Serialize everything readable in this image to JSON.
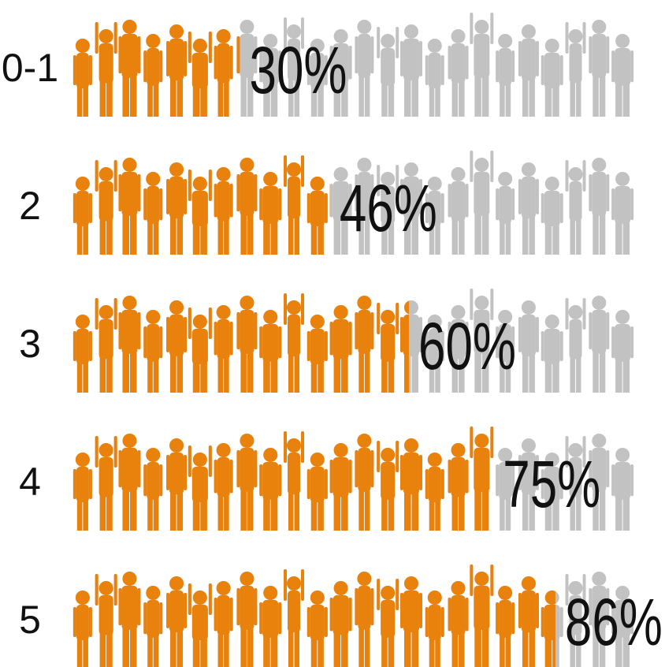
{
  "chart_data": {
    "type": "pictograph",
    "categories": [
      "0-1",
      "2",
      "3",
      "4",
      "5"
    ],
    "values": [
      30,
      46,
      60,
      75,
      86
    ],
    "value_labels": [
      "30%",
      "46%",
      "60%",
      "75%",
      "86%"
    ],
    "xlim": [
      0,
      100
    ],
    "color": "#e8820c",
    "background_color": "#c2c2c2"
  }
}
